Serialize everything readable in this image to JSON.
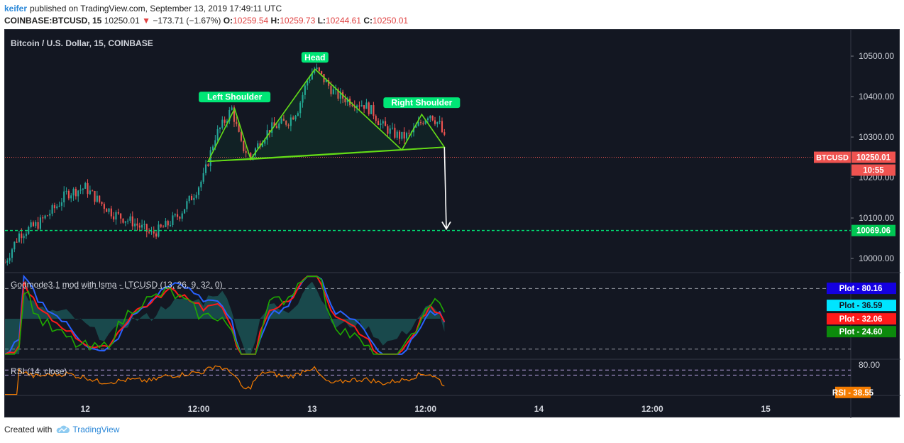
{
  "publish_bar": {
    "author": "keifer",
    "text": "published on TradingView.com, September 13, 2019 17:49:11 UTC"
  },
  "ohlc": {
    "symbol": "COINBASE:BTCUSD, 15",
    "last": "10250.01",
    "change": "−173.71 (−1.67%)",
    "o_label": "O:",
    "o": "10259.54",
    "h_label": "H:",
    "h": "10259.73",
    "l_label": "L:",
    "l": "10244.61",
    "c_label": "C:",
    "c": "10250.01",
    "change_color": "#e04343"
  },
  "main_pane": {
    "title": "Bitcoin / U.S. Dollar, 15, COINBASE",
    "annotations": [
      "Head",
      "Left Shoulder",
      "Right Shoulder"
    ],
    "price_labels": [
      {
        "text": "BTCUSD",
        "value": "10250.01",
        "color": "#ef5350"
      },
      {
        "text": "",
        "value": "10:55",
        "color": "#ef5350"
      },
      {
        "text": "",
        "value": "10069.06",
        "color": "#00c853"
      }
    ]
  },
  "oscillator_pane": {
    "title": "Godmode3.1 mod with lsma - LTCUSD (13, 26, 9, 32, 0)",
    "labels": [
      {
        "text": "Plot",
        "value": "80.16",
        "bg": "#1400e0",
        "fg": "#ffffff"
      },
      {
        "text": "Plot",
        "value": "36.59",
        "bg": "#00e5ff",
        "fg": "#131722"
      },
      {
        "text": "Plot",
        "value": "32.06",
        "bg": "#ff1a1a",
        "fg": "#ffffff"
      },
      {
        "text": "Plot",
        "value": "24.60",
        "bg": "#0c8a0c",
        "fg": "#ffffff"
      }
    ]
  },
  "rsi_pane": {
    "title": "RSI (14, close)",
    "axis_label": "80.00",
    "label": {
      "text": "RSI",
      "value": "38.55",
      "bg": "#f57c00"
    }
  },
  "footer": {
    "prefix": "Created with",
    "brand": "TradingView"
  },
  "chart_data": {
    "type": "candlestick",
    "title": "Bitcoin / U.S. Dollar, 15, COINBASE",
    "y_ticks": [
      10500,
      10400,
      10300,
      10200,
      10100,
      10000
    ],
    "y_tick_labels": [
      "10500.00",
      "10400.00",
      "10300.00",
      "10200.00",
      "10100.00",
      "10000.00"
    ],
    "ylim": [
      9965,
      10565
    ],
    "x_tick_labels": [
      "12",
      "12:00",
      "13",
      "12:00",
      "14",
      "12:00",
      "15"
    ],
    "x_tick_hours": [
      12,
      24,
      36,
      48,
      60,
      72,
      84
    ],
    "xlim_hours": [
      3.5,
      93.0
    ],
    "last_hour": 50.2,
    "close_path": [
      [
        3.5,
        9990
      ],
      [
        5,
        10060
      ],
      [
        7,
        10085
      ],
      [
        9,
        10130
      ],
      [
        10,
        10160
      ],
      [
        12,
        10175
      ],
      [
        13.5,
        10140
      ],
      [
        15,
        10110
      ],
      [
        17,
        10090
      ],
      [
        19,
        10060
      ],
      [
        20.5,
        10080
      ],
      [
        22,
        10110
      ],
      [
        23.5,
        10160
      ],
      [
        24.5,
        10200
      ],
      [
        25,
        10240
      ],
      [
        25.7,
        10300
      ],
      [
        26.5,
        10330
      ],
      [
        27.5,
        10370
      ],
      [
        28.5,
        10280
      ],
      [
        29.5,
        10250
      ],
      [
        30.5,
        10290
      ],
      [
        31.5,
        10320
      ],
      [
        32.5,
        10330
      ],
      [
        33.5,
        10340
      ],
      [
        34.5,
        10370
      ],
      [
        35.5,
        10440
      ],
      [
        36.3,
        10470
      ],
      [
        37.3,
        10440
      ],
      [
        38.5,
        10405
      ],
      [
        40,
        10390
      ],
      [
        41.5,
        10380
      ],
      [
        42.5,
        10360
      ],
      [
        43.3,
        10330
      ],
      [
        44.5,
        10310
      ],
      [
        45.5,
        10300
      ],
      [
        46.3,
        10305
      ],
      [
        47.3,
        10330
      ],
      [
        48.4,
        10360
      ],
      [
        49.5,
        10330
      ],
      [
        50.2,
        10280
      ],
      [
        50.6,
        10240
      ],
      [
        51.0,
        10250
      ]
    ],
    "horizontal_level": 10069.06,
    "last_price": 10250.01,
    "pattern": {
      "left_shoulder": [
        [
          25.0,
          10240
        ],
        [
          27.8,
          10370
        ],
        [
          29.5,
          10245
        ]
      ],
      "head": [
        [
          29.5,
          10245
        ],
        [
          36.3,
          10468
        ],
        [
          45.5,
          10268
        ]
      ],
      "right_shoulder": [
        [
          45.5,
          10268
        ],
        [
          47.6,
          10356
        ],
        [
          50.0,
          10275
        ]
      ],
      "neckline": [
        [
          25.0,
          10240
        ],
        [
          50.0,
          10275
        ]
      ],
      "target_arrow": [
        [
          50.0,
          10275
        ],
        [
          50.2,
          10073
        ]
      ]
    },
    "oscillator": {
      "upper_level": 80,
      "lower_level": 20,
      "ylim": [
        10,
        95
      ]
    },
    "rsi": {
      "ylim": [
        20,
        90
      ],
      "levels": [
        70,
        60
      ],
      "last": 38.55
    }
  }
}
